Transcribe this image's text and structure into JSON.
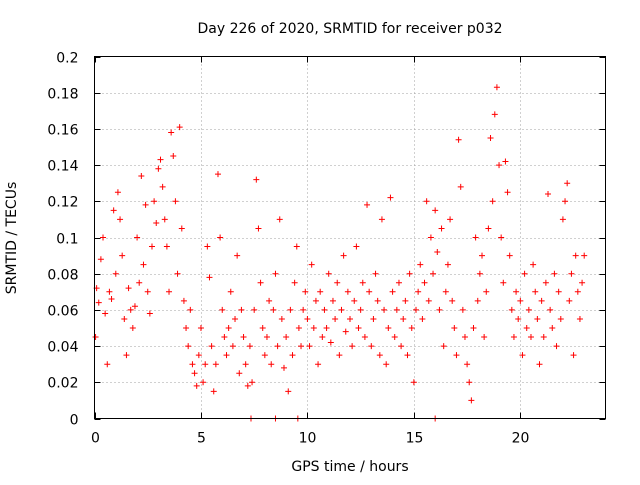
{
  "chart_data": {
    "type": "scatter",
    "title": "Day 226 of 2020, SRMTID for receiver p032",
    "xlabel": "GPS time / hours",
    "ylabel": "SRMTID / TECUs",
    "xlim": [
      0,
      24
    ],
    "ylim": [
      0,
      0.2
    ],
    "xticks": [
      0,
      5,
      10,
      15,
      20
    ],
    "yticks": [
      0,
      0.02,
      0.04,
      0.06,
      0.08,
      0.1,
      0.12,
      0.14,
      0.16,
      0.18,
      0.2
    ],
    "grid": true,
    "marker": "+",
    "color": "#ff0000",
    "series": [
      {
        "name": "SRMTID",
        "points": [
          [
            0.05,
            0.045
          ],
          [
            0.1,
            0.072
          ],
          [
            0.2,
            0.064
          ],
          [
            0.3,
            0.088
          ],
          [
            0.4,
            0.1
          ],
          [
            0.5,
            0.058
          ],
          [
            0.6,
            0.03
          ],
          [
            0.7,
            0.07
          ],
          [
            0.8,
            0.066
          ],
          [
            0.9,
            0.115
          ],
          [
            1.0,
            0.08
          ],
          [
            1.1,
            0.125
          ],
          [
            1.2,
            0.11
          ],
          [
            1.3,
            0.09
          ],
          [
            1.4,
            0.055
          ],
          [
            1.5,
            0.035
          ],
          [
            1.6,
            0.072
          ],
          [
            1.7,
            0.06
          ],
          [
            1.8,
            0.05
          ],
          [
            1.9,
            0.062
          ],
          [
            2.0,
            0.1
          ],
          [
            2.1,
            0.075
          ],
          [
            2.2,
            0.134
          ],
          [
            2.3,
            0.085
          ],
          [
            2.4,
            0.118
          ],
          [
            2.5,
            0.07
          ],
          [
            2.6,
            0.058
          ],
          [
            2.7,
            0.095
          ],
          [
            2.8,
            0.12
          ],
          [
            2.9,
            0.108
          ],
          [
            3.0,
            0.138
          ],
          [
            3.1,
            0.143
          ],
          [
            3.2,
            0.128
          ],
          [
            3.3,
            0.11
          ],
          [
            3.4,
            0.095
          ],
          [
            3.5,
            0.07
          ],
          [
            3.6,
            0.158
          ],
          [
            3.7,
            0.145
          ],
          [
            3.8,
            0.12
          ],
          [
            3.9,
            0.08
          ],
          [
            4.0,
            0.161
          ],
          [
            4.1,
            0.105
          ],
          [
            4.2,
            0.065
          ],
          [
            4.3,
            0.05
          ],
          [
            4.4,
            0.04
          ],
          [
            4.5,
            0.06
          ],
          [
            4.6,
            0.03
          ],
          [
            4.7,
            0.025
          ],
          [
            4.8,
            0.018
          ],
          [
            4.9,
            0.035
          ],
          [
            5.0,
            0.05
          ],
          [
            5.1,
            0.02
          ],
          [
            5.2,
            0.03
          ],
          [
            5.3,
            0.095
          ],
          [
            5.4,
            0.078
          ],
          [
            5.5,
            0.04
          ],
          [
            5.6,
            0.015
          ],
          [
            5.7,
            0.03
          ],
          [
            5.8,
            0.135
          ],
          [
            5.9,
            0.1
          ],
          [
            6.0,
            0.06
          ],
          [
            6.1,
            0.045
          ],
          [
            6.2,
            0.035
          ],
          [
            6.3,
            0.05
          ],
          [
            6.4,
            0.07
          ],
          [
            6.5,
            0.04
          ],
          [
            6.6,
            0.055
          ],
          [
            6.7,
            0.09
          ],
          [
            6.8,
            0.025
          ],
          [
            6.9,
            0.06
          ],
          [
            7.0,
            0.045
          ],
          [
            7.1,
            0.03
          ],
          [
            7.2,
            0.018
          ],
          [
            7.3,
            0.04
          ],
          [
            7.4,
            0.02
          ],
          [
            7.5,
            0.06
          ],
          [
            7.6,
            0.132
          ],
          [
            7.7,
            0.105
          ],
          [
            7.8,
            0.075
          ],
          [
            7.9,
            0.05
          ],
          [
            8.0,
            0.035
          ],
          [
            8.1,
            0.045
          ],
          [
            8.2,
            0.065
          ],
          [
            8.3,
            0.03
          ],
          [
            8.4,
            0.06
          ],
          [
            8.5,
            0.08
          ],
          [
            8.6,
            0.04
          ],
          [
            8.7,
            0.11
          ],
          [
            8.8,
            0.055
          ],
          [
            8.9,
            0.028
          ],
          [
            9.0,
            0.045
          ],
          [
            9.1,
            0.015
          ],
          [
            9.2,
            0.06
          ],
          [
            9.3,
            0.035
          ],
          [
            9.4,
            0.075
          ],
          [
            9.5,
            0.095
          ],
          [
            9.6,
            0.05
          ],
          [
            9.7,
            0.04
          ],
          [
            9.8,
            0.06
          ],
          [
            9.9,
            0.07
          ],
          [
            10.0,
            0.055
          ],
          [
            10.1,
            0.04
          ],
          [
            10.2,
            0.085
          ],
          [
            10.3,
            0.05
          ],
          [
            10.4,
            0.065
          ],
          [
            10.5,
            0.03
          ],
          [
            10.6,
            0.07
          ],
          [
            10.7,
            0.045
          ],
          [
            10.8,
            0.06
          ],
          [
            10.9,
            0.05
          ],
          [
            11.0,
            0.08
          ],
          [
            11.1,
            0.042
          ],
          [
            11.2,
            0.065
          ],
          [
            11.3,
            0.055
          ],
          [
            11.4,
            0.075
          ],
          [
            11.5,
            0.035
          ],
          [
            11.6,
            0.06
          ],
          [
            11.7,
            0.09
          ],
          [
            11.8,
            0.048
          ],
          [
            11.9,
            0.07
          ],
          [
            12.0,
            0.055
          ],
          [
            12.1,
            0.04
          ],
          [
            12.2,
            0.065
          ],
          [
            12.3,
            0.095
          ],
          [
            12.4,
            0.05
          ],
          [
            12.5,
            0.06
          ],
          [
            12.6,
            0.075
          ],
          [
            12.7,
            0.045
          ],
          [
            12.8,
            0.118
          ],
          [
            12.9,
            0.07
          ],
          [
            13.0,
            0.04
          ],
          [
            13.1,
            0.055
          ],
          [
            13.2,
            0.08
          ],
          [
            13.3,
            0.065
          ],
          [
            13.4,
            0.035
          ],
          [
            13.5,
            0.11
          ],
          [
            13.6,
            0.06
          ],
          [
            13.7,
            0.03
          ],
          [
            13.8,
            0.05
          ],
          [
            13.9,
            0.122
          ],
          [
            14.0,
            0.07
          ],
          [
            14.1,
            0.045
          ],
          [
            14.2,
            0.06
          ],
          [
            14.3,
            0.075
          ],
          [
            14.4,
            0.04
          ],
          [
            14.5,
            0.055
          ],
          [
            14.6,
            0.065
          ],
          [
            14.7,
            0.035
          ],
          [
            14.8,
            0.08
          ],
          [
            14.9,
            0.05
          ],
          [
            15.0,
            0.02
          ],
          [
            15.1,
            0.06
          ],
          [
            15.2,
            0.07
          ],
          [
            15.3,
            0.085
          ],
          [
            15.4,
            0.055
          ],
          [
            15.5,
            0.075
          ],
          [
            15.6,
            0.12
          ],
          [
            15.7,
            0.065
          ],
          [
            15.8,
            0.1
          ],
          [
            15.9,
            0.08
          ],
          [
            16.0,
            0.115
          ],
          [
            16.1,
            0.092
          ],
          [
            16.2,
            0.06
          ],
          [
            16.3,
            0.105
          ],
          [
            16.4,
            0.04
          ],
          [
            16.5,
            0.07
          ],
          [
            16.6,
            0.085
          ],
          [
            16.7,
            0.11
          ],
          [
            16.8,
            0.065
          ],
          [
            16.9,
            0.05
          ],
          [
            17.0,
            0.035
          ],
          [
            17.1,
            0.154
          ],
          [
            17.2,
            0.128
          ],
          [
            17.3,
            0.06
          ],
          [
            17.4,
            0.045
          ],
          [
            17.5,
            0.03
          ],
          [
            17.6,
            0.02
          ],
          [
            17.7,
            0.01
          ],
          [
            17.8,
            0.05
          ],
          [
            17.9,
            0.1
          ],
          [
            18.0,
            0.065
          ],
          [
            18.1,
            0.08
          ],
          [
            18.2,
            0.09
          ],
          [
            18.3,
            0.045
          ],
          [
            18.4,
            0.07
          ],
          [
            18.5,
            0.105
          ],
          [
            18.6,
            0.155
          ],
          [
            18.7,
            0.12
          ],
          [
            18.8,
            0.168
          ],
          [
            18.9,
            0.183
          ],
          [
            19.0,
            0.14
          ],
          [
            19.1,
            0.1
          ],
          [
            19.2,
            0.075
          ],
          [
            19.3,
            0.142
          ],
          [
            19.4,
            0.125
          ],
          [
            19.5,
            0.09
          ],
          [
            19.6,
            0.06
          ],
          [
            19.7,
            0.045
          ],
          [
            19.8,
            0.07
          ],
          [
            19.9,
            0.055
          ],
          [
            20.0,
            0.065
          ],
          [
            20.1,
            0.035
          ],
          [
            20.2,
            0.08
          ],
          [
            20.3,
            0.05
          ],
          [
            20.4,
            0.06
          ],
          [
            20.5,
            0.045
          ],
          [
            20.6,
            0.085
          ],
          [
            20.7,
            0.07
          ],
          [
            20.8,
            0.055
          ],
          [
            20.9,
            0.03
          ],
          [
            21.0,
            0.065
          ],
          [
            21.1,
            0.045
          ],
          [
            21.2,
            0.075
          ],
          [
            21.3,
            0.124
          ],
          [
            21.4,
            0.06
          ],
          [
            21.5,
            0.05
          ],
          [
            21.6,
            0.08
          ],
          [
            21.7,
            0.04
          ],
          [
            21.8,
            0.07
          ],
          [
            21.9,
            0.055
          ],
          [
            22.0,
            0.11
          ],
          [
            22.1,
            0.12
          ],
          [
            22.2,
            0.13
          ],
          [
            22.3,
            0.065
          ],
          [
            22.4,
            0.08
          ],
          [
            22.5,
            0.035
          ],
          [
            22.6,
            0.09
          ],
          [
            22.7,
            0.07
          ],
          [
            22.8,
            0.055
          ],
          [
            22.9,
            0.075
          ],
          [
            23.0,
            0.09
          ],
          [
            7.35,
            0.0
          ],
          [
            8.5,
            0.0
          ],
          [
            9.55,
            0.0
          ],
          [
            16.0,
            0.0
          ]
        ]
      }
    ]
  }
}
